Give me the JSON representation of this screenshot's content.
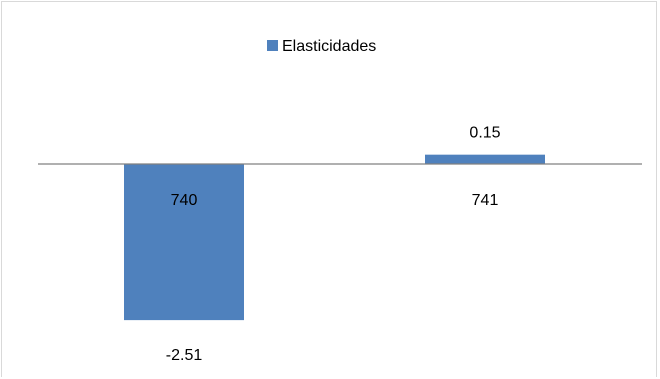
{
  "chart_data": {
    "type": "bar",
    "categories": [
      "740",
      "741"
    ],
    "series": [
      {
        "name": "Elasticidades",
        "values": [
          -2.51,
          0.15
        ]
      }
    ],
    "data_labels": [
      "-2.51",
      "0.15"
    ],
    "title": "",
    "xlabel": "",
    "ylabel": "",
    "ylim": [
      -2.55,
      0.35
    ],
    "grid": false,
    "legend": "top-center",
    "series_color": "#4F81BD",
    "axis_color": "#808080"
  }
}
